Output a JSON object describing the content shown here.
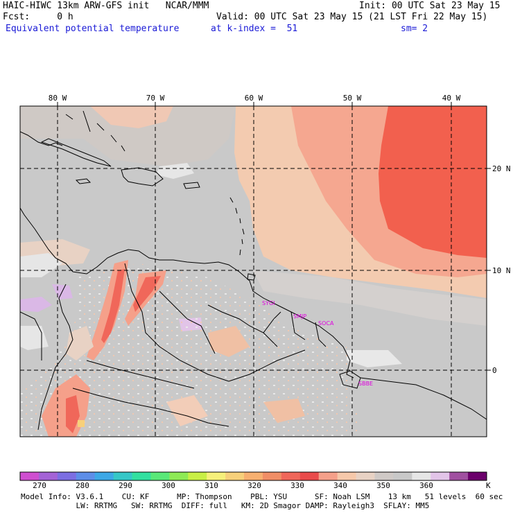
{
  "header": {
    "line1_left": "HAIC-HIWC 13km ARW-GFS init   NCAR/MMM",
    "line1_right": "Init: 00 UTC Sat 23 May 15",
    "line2_left": "Fcst:     0 h",
    "line2_right": "Valid: 00 UTC Sat 23 May 15 (21 LST Fri 22 May 15)",
    "field_name": "Equivalent potential temperature",
    "k_index": "at k-index =  51",
    "smoothing": "sm= 2"
  },
  "map": {
    "lon_labels": [
      "80 W",
      "70 W",
      "60 W",
      "50 W",
      "40 W"
    ],
    "lat_labels": [
      "20 N",
      "10 N",
      "0"
    ],
    "stations": [
      "SYGI",
      "SMJP",
      "SOCA",
      "SBBE"
    ],
    "colors": {
      "land_line": "#000000",
      "grid_line": "#000000",
      "station_label": "#e000e0"
    }
  },
  "colorbar": {
    "labels": [
      "270",
      "280",
      "290",
      "300",
      "310",
      "320",
      "330",
      "340",
      "350",
      "360"
    ],
    "unit": "K",
    "colors": [
      "#cf4fd0",
      "#a463d6",
      "#7c6ee2",
      "#5d8ee8",
      "#3da8e6",
      "#36c7c7",
      "#32e0a0",
      "#59e878",
      "#8eea55",
      "#c8ef45",
      "#f6f07a",
      "#f7d07a",
      "#f7b070",
      "#f08e66",
      "#f0675a",
      "#e94b4b",
      "#f5a08a",
      "#f6c8aa",
      "#e8d2c4",
      "#cfc9c6",
      "#c8c8c8",
      "#e6e6e6",
      "#e2c4e8",
      "#a050a0",
      "#6b006b"
    ]
  },
  "footer": {
    "line1": "Model Info: V3.6.1    CU: KF      MP: Thompson    PBL: YSU      SF: Noah LSM    13 km   51 levels  60 sec",
    "line2": "            LW: RRTMG   SW: RRTMG  DIFF: full   KM: 2D Smagor DAMP: Rayleigh3  SFLAY: MM5"
  }
}
